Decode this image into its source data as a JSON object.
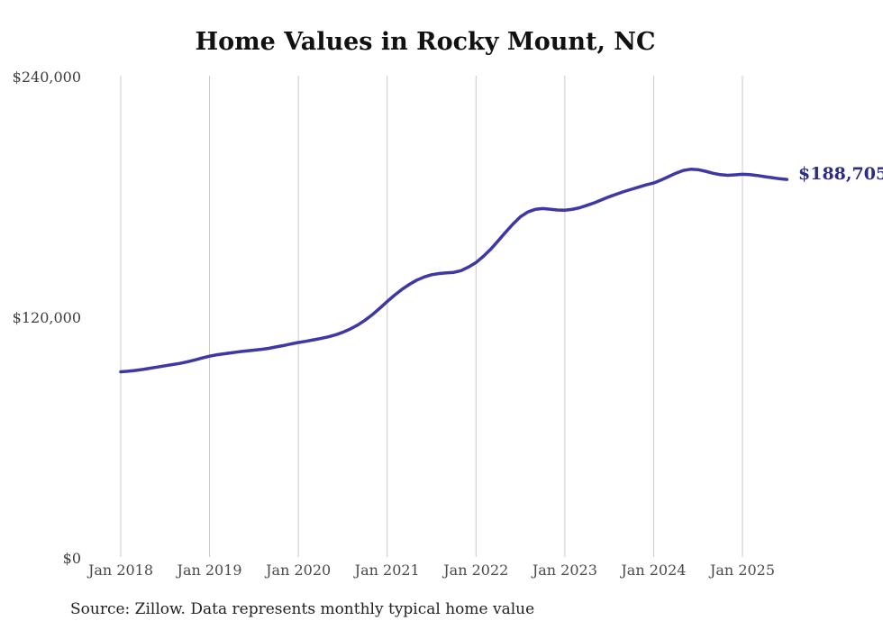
{
  "page": {
    "background_color": "#ffffff"
  },
  "title": "Home Values in Rocky Mount, NC",
  "source_note": "Source: Zillow. Data represents monthly typical home value",
  "chart_data": {
    "type": "line",
    "title": "Home Values in Rocky Mount, NC",
    "xlabel": "",
    "ylabel": "",
    "x_start": "Jan 2018",
    "x_end": "Jul 2025",
    "frequency": "monthly",
    "unit": "USD",
    "ylim": [
      0,
      240000
    ],
    "grid": "vertical-only",
    "legend": "none",
    "series_name": "Typical home value",
    "values": [
      92800,
      93100,
      93500,
      94000,
      94600,
      95200,
      95800,
      96400,
      97000,
      97800,
      98700,
      99700,
      100600,
      101300,
      101800,
      102300,
      102800,
      103200,
      103600,
      104000,
      104500,
      105200,
      105900,
      106700,
      107400,
      108000,
      108700,
      109400,
      110200,
      111200,
      112500,
      114100,
      116100,
      118500,
      121300,
      124500,
      127800,
      131000,
      133900,
      136400,
      138500,
      140100,
      141200,
      141800,
      142100,
      142400,
      143300,
      145100,
      147300,
      150400,
      154000,
      158100,
      162400,
      166500,
      170100,
      172500,
      173800,
      174200,
      173900,
      173500,
      173400,
      173800,
      174600,
      175800,
      177100,
      178600,
      180100,
      181400,
      182700,
      183800,
      184900,
      186000,
      186900,
      188400,
      190100,
      191800,
      193200,
      193800,
      193600,
      192800,
      191800,
      191100,
      190800,
      191000,
      191300,
      191100,
      190700,
      190100,
      189600,
      189100,
      188705
    ],
    "x_ticks": [
      {
        "label": "Jan 2018",
        "month_index": 0
      },
      {
        "label": "Jan 2019",
        "month_index": 12
      },
      {
        "label": "Jan 2020",
        "month_index": 24
      },
      {
        "label": "Jan 2021",
        "month_index": 36
      },
      {
        "label": "Jan 2022",
        "month_index": 48
      },
      {
        "label": "Jan 2023",
        "month_index": 60
      },
      {
        "label": "Jan 2024",
        "month_index": 72
      },
      {
        "label": "Jan 2025",
        "month_index": 84
      }
    ],
    "y_ticks": [
      {
        "label": "$0",
        "value": 0
      },
      {
        "label": "$120,000",
        "value": 120000
      },
      {
        "label": "$240,000",
        "value": 240000
      }
    ],
    "end_label": "$188,705",
    "colors": {
      "line": "#3e38a5",
      "end_label": "#2d2c82",
      "gridline": "#c9c9c9",
      "axis_tick_label": "#4a4a4a",
      "y_tick_label": "#3d3d3d",
      "title": "#111111",
      "source": "#222222"
    }
  }
}
